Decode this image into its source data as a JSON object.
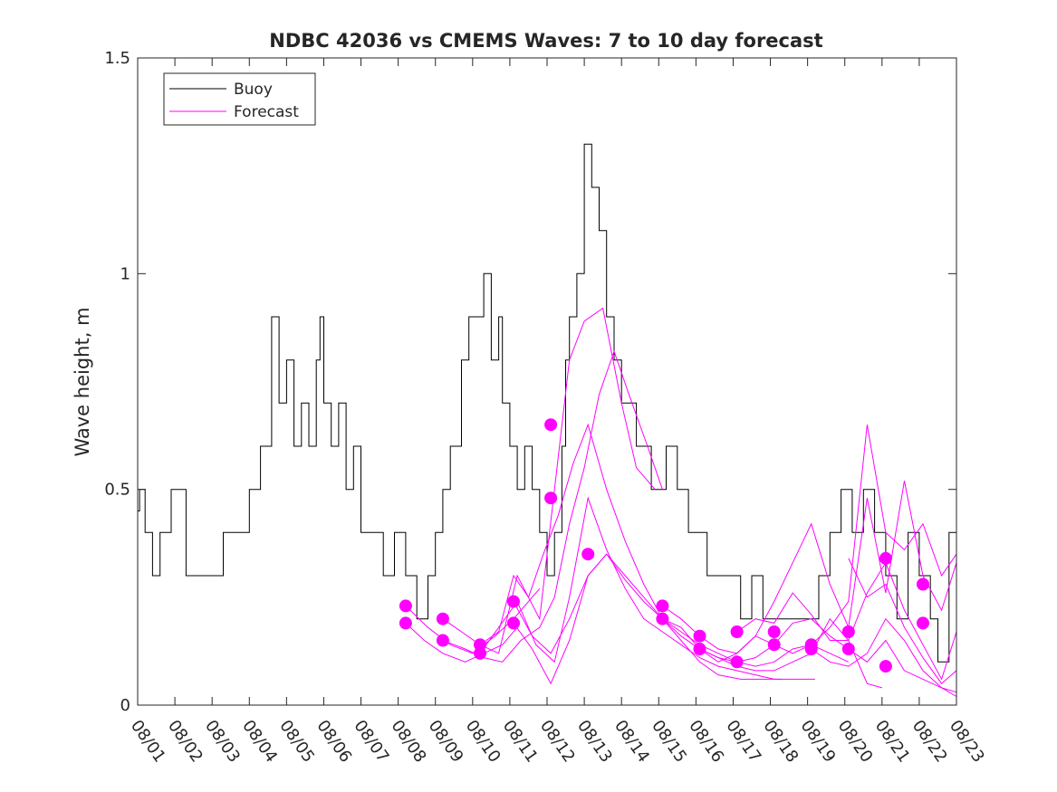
{
  "chart_data": {
    "type": "line",
    "title": "NDBC 42036 vs CMEMS Waves: 7 to 10 day forecast",
    "xlabel": "",
    "ylabel": "Wave height, m",
    "xlim": [
      0,
      22
    ],
    "ylim": [
      0,
      1.5
    ],
    "grid": false,
    "legend_position": "top-left",
    "x_tick_labels": [
      "08/01",
      "08/02",
      "08/03",
      "08/04",
      "08/05",
      "08/06",
      "08/07",
      "08/08",
      "08/09",
      "08/10",
      "08/11",
      "08/12",
      "08/13",
      "08/14",
      "08/15",
      "08/16",
      "08/17",
      "08/18",
      "08/19",
      "08/20",
      "08/21",
      "08/22",
      "08/23"
    ],
    "y_ticks": [
      0,
      0.5,
      1,
      1.5
    ],
    "y_tick_labels": [
      "0",
      "0.5",
      "1",
      "1.5"
    ],
    "series": [
      {
        "name": "Buoy",
        "color": "#000000",
        "x": [
          0,
          0.05,
          0.2,
          0.4,
          0.6,
          0.9,
          1.3,
          1.8,
          2.3,
          2.6,
          3.0,
          3.3,
          3.6,
          3.8,
          4.0,
          4.2,
          4.4,
          4.6,
          4.8,
          4.9,
          5.0,
          5.2,
          5.4,
          5.6,
          5.8,
          6.0,
          6.3,
          6.6,
          6.9,
          7.2,
          7.5,
          7.8,
          8.0,
          8.2,
          8.4,
          8.7,
          8.9,
          9.1,
          9.3,
          9.5,
          9.7,
          9.8,
          10.0,
          10.2,
          10.4,
          10.6,
          10.8,
          11.0,
          11.2,
          11.4,
          11.5,
          11.6,
          11.8,
          12.0,
          12.2,
          12.4,
          12.6,
          12.8,
          13.0,
          13.2,
          13.4,
          13.6,
          13.8,
          14.0,
          14.2,
          14.5,
          14.8,
          15.0,
          15.3,
          15.6,
          15.9,
          16.2,
          16.5,
          16.8,
          17.1,
          17.4,
          17.7,
          18.0,
          18.3,
          18.6,
          18.9,
          19.2,
          19.5,
          19.8,
          20.1,
          20.4,
          20.7,
          21.0,
          21.3,
          21.5,
          21.8,
          22.0
        ],
        "y": [
          0.45,
          0.5,
          0.4,
          0.3,
          0.4,
          0.5,
          0.3,
          0.3,
          0.4,
          0.4,
          0.5,
          0.6,
          0.9,
          0.7,
          0.8,
          0.6,
          0.7,
          0.6,
          0.8,
          0.9,
          0.7,
          0.6,
          0.7,
          0.5,
          0.6,
          0.4,
          0.4,
          0.3,
          0.4,
          0.3,
          0.2,
          0.3,
          0.4,
          0.5,
          0.6,
          0.8,
          0.9,
          0.9,
          1.0,
          0.8,
          0.9,
          0.7,
          0.6,
          0.5,
          0.6,
          0.5,
          0.4,
          0.3,
          0.4,
          0.6,
          0.8,
          0.9,
          1.0,
          1.3,
          1.2,
          1.1,
          0.9,
          0.8,
          0.7,
          0.7,
          0.6,
          0.6,
          0.5,
          0.5,
          0.6,
          0.5,
          0.4,
          0.4,
          0.3,
          0.3,
          0.3,
          0.2,
          0.3,
          0.2,
          0.2,
          0.2,
          0.2,
          0.2,
          0.3,
          0.4,
          0.5,
          0.4,
          0.5,
          0.4,
          0.3,
          0.2,
          0.4,
          0.3,
          0.2,
          0.1,
          0.4,
          0.5
        ]
      },
      {
        "name": "Forecast",
        "color": "#ff00ff",
        "runs": [
          {
            "x": [
              7.2,
              7.8,
              8.4,
              9.0,
              9.6,
              10.1,
              10.5,
              10.8
            ],
            "y": [
              0.23,
              0.18,
              0.14,
              0.12,
              0.16,
              0.2,
              0.24,
              0.27
            ]
          },
          {
            "x": [
              7.2,
              7.7,
              8.2,
              8.8,
              9.3,
              9.8,
              10.2
            ],
            "y": [
              0.19,
              0.15,
              0.12,
              0.1,
              0.12,
              0.14,
              0.18
            ]
          },
          {
            "x": [
              8.2,
              8.7,
              9.2,
              9.7,
              10.2,
              10.8,
              11.2,
              11.6,
              12.0,
              12.5,
              13.0,
              13.4,
              13.9
            ],
            "y": [
              0.2,
              0.17,
              0.14,
              0.12,
              0.3,
              0.2,
              0.5,
              0.8,
              0.89,
              0.92,
              0.7,
              0.55,
              0.5
            ]
          },
          {
            "x": [
              8.2,
              8.8,
              9.3,
              9.8,
              10.3,
              10.8,
              11.2,
              11.6,
              12.0,
              12.4,
              12.8,
              13.2,
              13.7,
              14.1
            ],
            "y": [
              0.15,
              0.13,
              0.11,
              0.1,
              0.15,
              0.18,
              0.25,
              0.42,
              0.55,
              0.72,
              0.82,
              0.72,
              0.6,
              0.5
            ]
          },
          {
            "x": [
              9.2,
              9.7,
              10.1,
              10.5,
              10.9,
              11.3,
              11.7,
              12.1,
              12.6,
              13.1,
              13.6,
              14.1,
              14.6,
              15.1,
              15.6,
              16.2,
              16.8,
              17.3
            ],
            "y": [
              0.14,
              0.17,
              0.3,
              0.25,
              0.35,
              0.44,
              0.56,
              0.65,
              0.5,
              0.38,
              0.28,
              0.2,
              0.15,
              0.1,
              0.07,
              0.06,
              0.06,
              0.06
            ]
          },
          {
            "x": [
              9.2,
              9.7,
              10.2,
              10.7,
              11.2,
              11.6,
              12.1,
              12.6,
              13.1,
              13.6,
              14.1,
              14.6,
              15.1,
              15.6,
              16.1,
              16.6,
              17.1,
              17.6,
              18.2
            ],
            "y": [
              0.12,
              0.18,
              0.24,
              0.14,
              0.1,
              0.25,
              0.48,
              0.36,
              0.27,
              0.2,
              0.17,
              0.14,
              0.11,
              0.09,
              0.08,
              0.07,
              0.06,
              0.06,
              0.06
            ]
          },
          {
            "x": [
              10.1,
              10.6,
              11.1,
              11.6,
              12.1,
              12.6,
              13.1,
              13.6,
              14.1,
              14.6,
              15.1,
              15.6,
              16.1,
              16.6,
              17.1,
              17.6,
              18.1,
              18.6,
              19.1
            ],
            "y": [
              0.24,
              0.16,
              0.12,
              0.2,
              0.3,
              0.35,
              0.29,
              0.24,
              0.2,
              0.17,
              0.14,
              0.12,
              0.1,
              0.09,
              0.1,
              0.13,
              0.14,
              0.12,
              0.1
            ]
          },
          {
            "x": [
              10.1,
              10.6,
              11.1,
              11.6,
              12.1,
              12.6,
              13.1,
              13.6,
              14.1,
              14.6,
              15.1,
              15.6,
              16.1,
              16.6,
              17.1,
              17.6,
              18.1,
              18.6,
              19.1,
              19.6,
              20.0
            ],
            "y": [
              0.19,
              0.13,
              0.05,
              0.15,
              0.3,
              0.35,
              0.3,
              0.25,
              0.2,
              0.16,
              0.13,
              0.11,
              0.09,
              0.08,
              0.08,
              0.1,
              0.12,
              0.2,
              0.15,
              0.05,
              0.04
            ]
          },
          {
            "x": [
              14.1,
              14.6,
              15.1,
              15.6,
              16.1,
              16.6,
              17.1,
              17.6,
              18.1,
              18.6,
              19.1,
              19.6,
              20.1,
              20.6,
              21.1,
              21.6,
              22.0
            ],
            "y": [
              0.23,
              0.2,
              0.16,
              0.13,
              0.12,
              0.16,
              0.24,
              0.33,
              0.42,
              0.28,
              0.18,
              0.48,
              0.26,
              0.52,
              0.3,
              0.22,
              0.33
            ]
          },
          {
            "x": [
              14.1,
              14.6,
              15.1,
              15.6,
              16.1,
              16.6,
              17.1,
              17.6,
              18.1,
              18.6,
              19.1,
              19.6,
              20.1,
              20.6,
              21.1,
              21.6,
              22.0
            ],
            "y": [
              0.2,
              0.18,
              0.13,
              0.1,
              0.12,
              0.16,
              0.14,
              0.12,
              0.14,
              0.18,
              0.24,
              0.65,
              0.4,
              0.36,
              0.42,
              0.3,
              0.35
            ]
          },
          {
            "x": [
              16.1,
              16.6,
              17.1,
              17.6,
              18.1,
              18.6,
              19.1,
              19.6,
              20.1,
              20.6,
              21.1,
              21.6,
              22.0
            ],
            "y": [
              0.17,
              0.2,
              0.19,
              0.26,
              0.21,
              0.15,
              0.15,
              0.26,
              0.33,
              0.22,
              0.14,
              0.06,
              0.17
            ]
          },
          {
            "x": [
              15.1,
              15.6,
              16.1,
              16.6,
              17.1,
              17.6,
              18.1,
              18.6,
              19.1,
              19.6,
              20.1,
              20.6,
              21.1,
              21.6,
              22.0
            ],
            "y": [
              0.13,
              0.11,
              0.1,
              0.11,
              0.14,
              0.19,
              0.2,
              0.16,
              0.13,
              0.1,
              0.15,
              0.08,
              0.06,
              0.04,
              0.03
            ]
          },
          {
            "x": [
              18.1,
              18.6,
              19.1,
              19.6,
              20.1,
              20.6,
              21.1,
              21.6,
              22.0
            ],
            "y": [
              0.13,
              0.1,
              0.09,
              0.12,
              0.2,
              0.15,
              0.08,
              0.04,
              0.02
            ]
          },
          {
            "x": [
              19.1,
              19.6,
              20.1,
              20.6,
              21.1,
              21.6,
              22.0
            ],
            "y": [
              0.34,
              0.25,
              0.28,
              0.18,
              0.11,
              0.05,
              0.08
            ]
          }
        ],
        "markers": {
          "x": [
            7.2,
            7.2,
            8.2,
            8.2,
            9.2,
            9.2,
            10.1,
            10.1,
            11.1,
            11.1,
            12.1,
            14.1,
            14.1,
            15.1,
            15.1,
            16.1,
            16.1,
            17.1,
            17.1,
            18.1,
            18.1,
            19.1,
            19.1,
            20.1,
            20.1,
            21.1,
            21.1
          ],
          "y": [
            0.23,
            0.19,
            0.2,
            0.15,
            0.14,
            0.12,
            0.24,
            0.19,
            0.65,
            0.48,
            0.35,
            0.23,
            0.2,
            0.16,
            0.13,
            0.17,
            0.1,
            0.17,
            0.14,
            0.14,
            0.13,
            0.17,
            0.13,
            0.34,
            0.09,
            0.28,
            0.19
          ]
        }
      }
    ]
  }
}
